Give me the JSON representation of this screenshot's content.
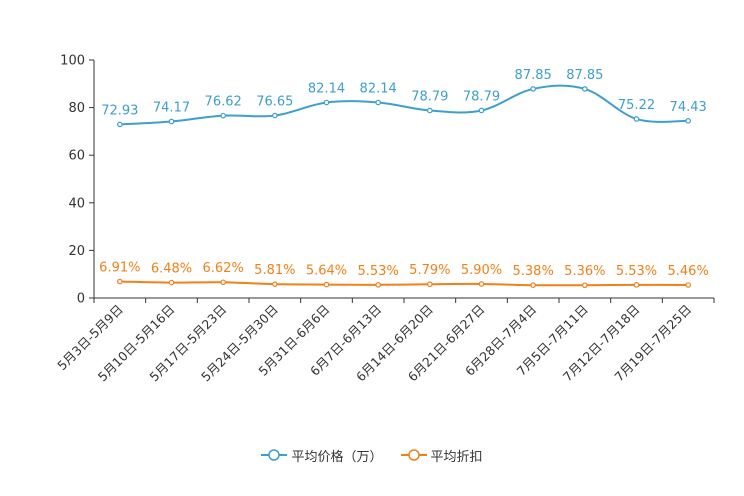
{
  "chart_data": {
    "type": "line",
    "title": "",
    "xlabel": "",
    "ylabel": "",
    "ylim": [
      0,
      100
    ],
    "yticks": [
      0,
      20,
      40,
      60,
      80,
      100
    ],
    "grid": false,
    "legend_position": "bottom-center",
    "categories": [
      "5月3日-5月9日",
      "5月10日-5月16日",
      "5月17日-5月23日",
      "5月24日-5月30日",
      "5月31日-6月6日",
      "6月7日-6月13日",
      "6月14日-6月20日",
      "6月21日-6月27日",
      "6月28日-7月4日",
      "7月5日-7月11日",
      "7月12日-7月18日",
      "7月19日-7月25日"
    ],
    "series": [
      {
        "name": "平均价格（万）",
        "color": "#3d9fcd",
        "values": [
          72.93,
          74.17,
          76.62,
          76.65,
          82.14,
          82.14,
          78.79,
          78.79,
          87.85,
          87.85,
          75.22,
          74.43
        ],
        "labels": [
          "72.93",
          "74.17",
          "76.62",
          "76.65",
          "82.14",
          "82.14",
          "78.79",
          "78.79",
          "87.85",
          "87.85",
          "75.22",
          "74.43"
        ]
      },
      {
        "name": "平均折扣",
        "color": "#f28018",
        "values": [
          6.91,
          6.48,
          6.62,
          5.81,
          5.64,
          5.53,
          5.79,
          5.9,
          5.38,
          5.36,
          5.53,
          5.46
        ],
        "labels": [
          "6.91%",
          "6.48%",
          "6.62%",
          "5.81%",
          "5.64%",
          "5.53%",
          "5.79%",
          "5.90%",
          "5.38%",
          "5.36%",
          "5.53%",
          "5.46%"
        ]
      }
    ]
  }
}
